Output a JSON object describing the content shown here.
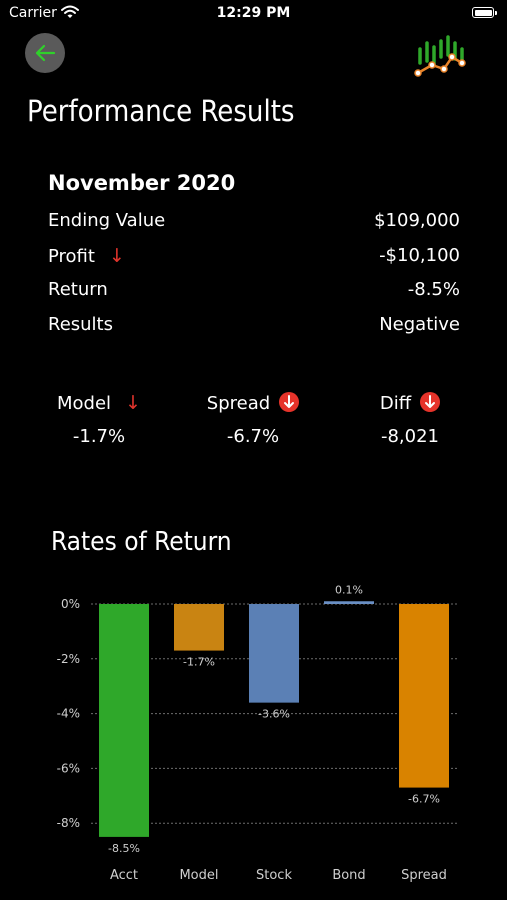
{
  "status_bar": {
    "carrier": "Carrier",
    "time": "12:29 PM"
  },
  "header": {
    "back_icon": "arrow-left-icon",
    "logo_icon": "stock-chart-logo-icon",
    "title": "Performance Results"
  },
  "summary": {
    "month": "November 2020",
    "rows": [
      {
        "label": "Ending Value",
        "value": "$109,000"
      },
      {
        "label": "Profit",
        "value": "-$10,100",
        "indicator": "↓"
      },
      {
        "label": "Return",
        "value": "-8.5%"
      },
      {
        "label": "Results",
        "value": "Negative"
      }
    ]
  },
  "metrics": [
    {
      "label": "Model",
      "value": "-1.7%",
      "indicator": "↓"
    },
    {
      "label": "Spread",
      "value": "-6.7%",
      "indicator": "down-circle-icon"
    },
    {
      "label": "Diff",
      "value": "-8,021",
      "indicator": "down-circle-icon"
    }
  ],
  "colors": {
    "accent_green": "#2fa82a",
    "model_orange": "#c98412",
    "stock_blue": "#5b80b5",
    "bond_blue": "#6a8fc4",
    "spread_orange": "#d98300",
    "negative_red": "#e6332a"
  },
  "chart_data": {
    "type": "bar",
    "title": "Rates of Return",
    "categories": [
      "Acct",
      "Model",
      "Stock",
      "Bond",
      "Spread"
    ],
    "values": [
      -8.5,
      -1.7,
      -3.6,
      0.1,
      -6.7
    ],
    "data_labels": [
      "-8.5%",
      "-1.7%",
      "-3.6%",
      "0.1%",
      "-6.7%"
    ],
    "colors": [
      "#2fa82a",
      "#c98412",
      "#5b80b5",
      "#6a8fc4",
      "#d98300"
    ],
    "yticks": [
      0,
      -2,
      -4,
      -6,
      -8
    ],
    "ytick_labels": [
      "0%",
      "-2%",
      "-4%",
      "-6%",
      "-8%"
    ],
    "ylim": [
      -8.5,
      0.1
    ],
    "grid": true,
    "xlabel": "",
    "ylabel": ""
  }
}
